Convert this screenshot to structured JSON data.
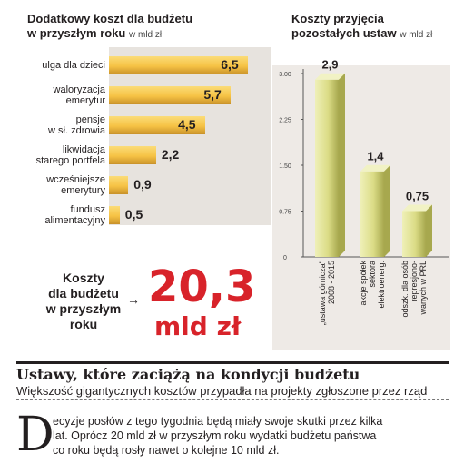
{
  "left_chart": {
    "title": "Dodatkowy koszt dla budżetu",
    "title_line2": "w przyszłym roku",
    "unit": "w mld zł",
    "items": [
      {
        "label": [
          "ulga dla dzieci"
        ],
        "value": 6.5,
        "value_text": "6,5"
      },
      {
        "label": [
          "waloryzacja",
          "emerytur"
        ],
        "value": 5.7,
        "value_text": "5,7"
      },
      {
        "label": [
          "pensje",
          "w sł. zdrowia"
        ],
        "value": 4.5,
        "value_text": "4,5"
      },
      {
        "label": [
          "likwidacja",
          "starego portfela"
        ],
        "value": 2.2,
        "value_text": "2,2"
      },
      {
        "label": [
          "wcześniejsze",
          "emerytury"
        ],
        "value": 0.9,
        "value_text": "0,9"
      },
      {
        "label": [
          "fundusz",
          "alimentacyjny"
        ],
        "value": 0.5,
        "value_text": "0,5"
      }
    ]
  },
  "right_chart": {
    "title": "Koszty przyjęcia",
    "title_line2": "pozostałych ustaw",
    "unit": "w mld zł",
    "ticks": [
      "3.00",
      "2.25",
      "1.50",
      "0.75",
      "0"
    ],
    "items": [
      {
        "label": [
          "„ustawa górnicza\"",
          "2008 - 2015"
        ],
        "value": 2.9,
        "value_text": "2,9"
      },
      {
        "label": [
          "akcje spółek",
          "sektora",
          "elektroenerg."
        ],
        "value": 1.4,
        "value_text": "1,4"
      },
      {
        "label": [
          "odszk. dla osób",
          "represjono-",
          "wanych w PRL"
        ],
        "value": 0.75,
        "value_text": "0,75"
      }
    ]
  },
  "chart_data": [
    {
      "type": "bar",
      "orientation": "horizontal",
      "title": "Dodatkowy koszt dla budżetu w przyszłym roku",
      "unit": "w mld zł",
      "categories": [
        "ulga dla dzieci",
        "waloryzacja emerytur",
        "pensje w sł. zdrowia",
        "likwidacja starego portfela",
        "wcześniejsze emerytury",
        "fundusz alimentacyjny"
      ],
      "values": [
        6.5,
        5.7,
        4.5,
        2.2,
        0.9,
        0.5
      ],
      "xlim": [
        0,
        7
      ],
      "grid": false,
      "color": "#f6c244"
    },
    {
      "type": "bar",
      "orientation": "vertical",
      "title": "Koszty przyjęcia pozostałych ustaw",
      "unit": "w mld zł",
      "categories": [
        "„ustawa górnicza\" 2008 - 2015",
        "akcje spółek sektora elektroenerg.",
        "odszk. dla osób represjonowanych w PRL"
      ],
      "values": [
        2.9,
        1.4,
        0.75
      ],
      "ylim": [
        0,
        3
      ],
      "yticks": [
        0,
        0.75,
        1.5,
        2.25,
        3.0
      ],
      "grid": false,
      "color": "#dbdc86"
    }
  ],
  "summary": {
    "label_lines": [
      "Koszty",
      "dla budżetu",
      "w przyszłym",
      "roku"
    ],
    "arrow": "→",
    "value": "20,3",
    "unit": "mld zł"
  },
  "article": {
    "headline": "Ustawy, które zaciążą na kondycji budżetu",
    "subhead": "Większość gigantycznych kosztów przypadła na projekty zgłoszone przez rząd",
    "dropcap": "D",
    "body_line1": "ecyzje posłów z tego tygodnia będą miały swoje skutki przez kilka",
    "body_line2": "lat. Oprócz 20 mld zł w przyszłym roku wydatki budżetu państwa",
    "body_line3": "co roku będą rosły nawet o kolejne 10 mld zł."
  },
  "colors": {
    "left_bar": "#f6c244",
    "left_bar_dark": "#c9922a",
    "left_bg": "#e7e3de",
    "right_bar": "#dbdc86",
    "right_bar_dark": "#a7a84e",
    "accent_red": "#d8232a"
  }
}
